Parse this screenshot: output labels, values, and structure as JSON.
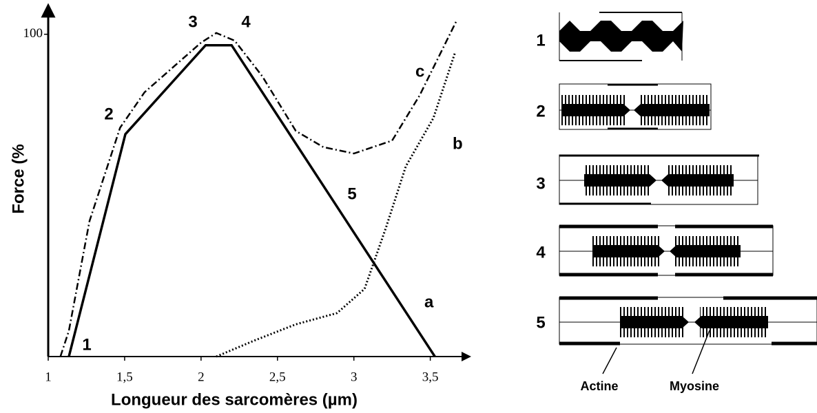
{
  "chart_data": {
    "type": "line",
    "xlabel": "Longueur des sarcomères (µm)",
    "ylabel": "Force (%",
    "xlim": [
      1,
      3.7
    ],
    "ylim": [
      0,
      107
    ],
    "xticks": [
      1,
      {
        "value": 1.5,
        "label": "1,5"
      },
      2,
      {
        "value": 2.5,
        "label": "2,5"
      },
      3,
      {
        "value": 3.5,
        "label": "3,5"
      }
    ],
    "yticks": [
      100
    ],
    "series": [
      {
        "name": "a",
        "color": "#000000",
        "style": "solid",
        "x": [
          1.135,
          1.505,
          2.03,
          2.2,
          3.53
        ],
        "values": [
          0,
          69,
          96.6,
          96.6,
          0
        ]
      },
      {
        "name": "b",
        "color": "#000000",
        "style": "dotted",
        "x": [
          2.1,
          2.35,
          2.62,
          2.89,
          3.07,
          3.21,
          3.34,
          3.52,
          3.66
        ],
        "values": [
          0,
          5,
          10,
          13.5,
          21,
          40,
          59,
          74,
          94
        ]
      },
      {
        "name": "c",
        "color": "#000000",
        "style": "dashdot",
        "x": [
          1.08,
          1.135,
          1.27,
          1.47,
          1.63,
          2.0,
          2.1,
          2.22,
          2.4,
          2.62,
          2.8,
          3.0,
          3.25,
          3.43,
          3.67
        ],
        "values": [
          0,
          8,
          42,
          71,
          82,
          97.4,
          100.4,
          98,
          87,
          70,
          65,
          63,
          67,
          81,
          104
        ]
      }
    ],
    "annotations": [
      "1",
      "2",
      "3",
      "4",
      "5"
    ]
  },
  "diagram": {
    "panels": [
      "1",
      "2",
      "3",
      "4",
      "5"
    ],
    "actin_label": "Actine",
    "myosin_label": "Myosine"
  }
}
